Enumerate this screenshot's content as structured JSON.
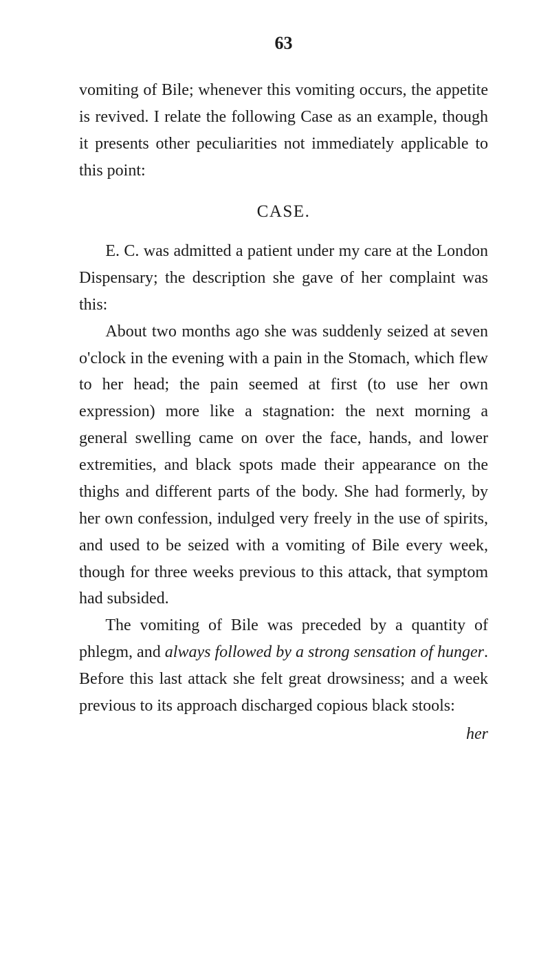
{
  "page_number": "63",
  "para1": "vomiting of Bile; whenever this vomiting occurs, the appetite is revived. I relate the following Case as an example, though it presents other peculiarities not immediately applicable to this point:",
  "case_heading": "CASE.",
  "para2": "E. C. was admitted a patient under my care at the London Dispensary; the description she gave of her complaint was this:",
  "para3_pre": "About two months ago she was suddenly seized at seven o'clock in the evening with a pain in the Stomach, which flew to her head; the pain seemed at first (to use her own expression) more like a stagnation: the next morning a general swelling came on over the face, hands, and lower extremities, and black spots made their appearance on the thighs and different parts of the body. She had formerly, by her own confession, indulged very freely in the use of spirits, and used to be seized with a vomiting of Bile every week, though for three weeks previous to this attack, that symptom had subsided.",
  "para4_1": "The vomiting of Bile was preceded by a quantity of phlegm, and ",
  "para4_i1": "always followed by a strong sensation of hunger",
  "para4_2": ". Before this last attack she felt great drowsiness; and a week previous to its approach discharged copious black stools:",
  "trail": "her"
}
